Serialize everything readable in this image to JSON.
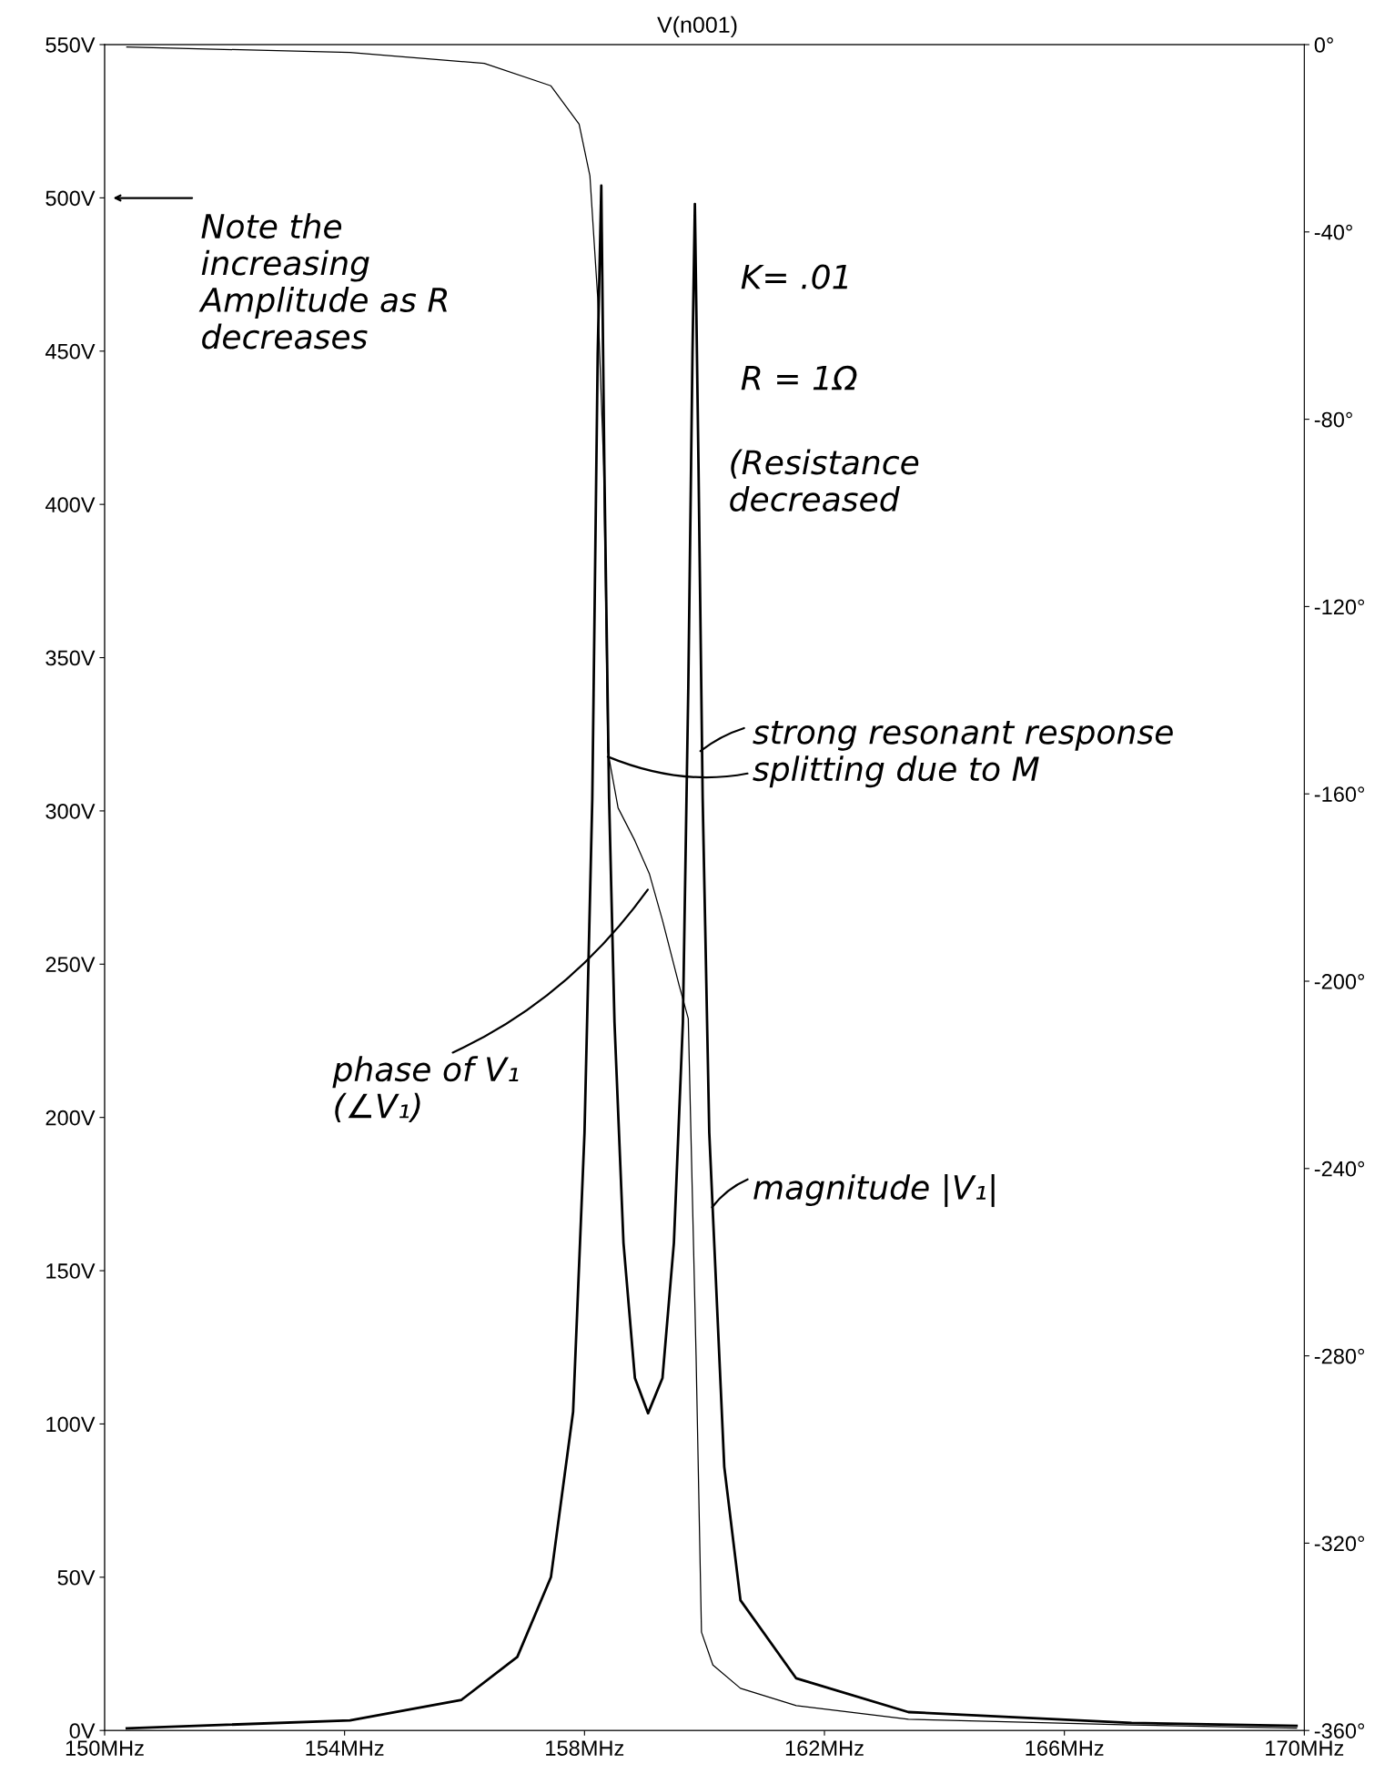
{
  "chart_data": {
    "type": "line",
    "title": "V(n001)",
    "xlim": [
      150,
      170
    ],
    "xticks": [
      {
        "value": 150,
        "label": "150MHz"
      },
      {
        "value": 154,
        "label": "154MHz"
      },
      {
        "value": 158,
        "label": "158MHz"
      },
      {
        "value": 162,
        "label": "162MHz"
      },
      {
        "value": 166,
        "label": "166MHz"
      },
      {
        "value": 170,
        "label": "170MHz"
      }
    ],
    "ylim": [
      0,
      550
    ],
    "yticks": [
      {
        "value": 0,
        "label": "0V"
      },
      {
        "value": 50,
        "label": "50V"
      },
      {
        "value": 100,
        "label": "100V"
      },
      {
        "value": 150,
        "label": "150V"
      },
      {
        "value": 200,
        "label": "200V"
      },
      {
        "value": 250,
        "label": "250V"
      },
      {
        "value": 300,
        "label": "300V"
      },
      {
        "value": 350,
        "label": "350V"
      },
      {
        "value": 400,
        "label": "400V"
      },
      {
        "value": 450,
        "label": "450V"
      },
      {
        "value": 500,
        "label": "500V"
      },
      {
        "value": 550,
        "label": "550V"
      }
    ],
    "y2lim": [
      -360,
      0
    ],
    "y2ticks": [
      {
        "value": -360,
        "label": "-360°"
      },
      {
        "value": -320,
        "label": "-320°"
      },
      {
        "value": -280,
        "label": "-280°"
      },
      {
        "value": -240,
        "label": "-240°"
      },
      {
        "value": -200,
        "label": "-200°"
      },
      {
        "value": -160,
        "label": "-160°"
      },
      {
        "value": -120,
        "label": "-120°"
      },
      {
        "value": -80,
        "label": "-80°"
      },
      {
        "value": -40,
        "label": "-40°"
      },
      {
        "value": 0,
        "label": "0°"
      }
    ],
    "grid": false,
    "marker": "none",
    "line_style": "solid",
    "series": [
      {
        "color": "#000000",
        "x": [
          150.37,
          154.09,
          155.95,
          156.88,
          157.44,
          157.81,
          158.0,
          158.13,
          158.22,
          158.28,
          158.33,
          158.41,
          158.5,
          158.65,
          158.84,
          159.06,
          159.3,
          159.49,
          159.64,
          159.73,
          159.8,
          159.84,
          159.9,
          159.97,
          160.08,
          160.33,
          160.6,
          161.53,
          163.4,
          167.12,
          169.87
        ],
        "values": [
          0.7,
          3.3,
          10,
          24,
          50,
          104,
          195,
          304,
          449,
          504,
          413,
          304,
          231,
          159,
          115,
          103.5,
          115,
          159,
          231,
          340,
          449,
          498,
          413,
          304,
          195,
          86,
          42.5,
          17,
          6,
          2.5,
          1.5
        ]
      },
      {
        "color": "#000000",
        "axis": "y2",
        "x": [
          150.37,
          154.09,
          156.33,
          157.44,
          157.91,
          158.09,
          158.22,
          158.32,
          158.39,
          158.56,
          158.84,
          159.08,
          159.3,
          159.58,
          159.73,
          159.86,
          159.95,
          160.14,
          160.6,
          161.53,
          163.4,
          167.12,
          169.87
        ],
        "values": [
          -0.5,
          -1.7,
          -4,
          -8.8,
          -17,
          -28,
          -54,
          -90,
          -151,
          -163,
          -170,
          -177,
          -187,
          -201,
          -208,
          -280,
          -339,
          -346,
          -351,
          -354.7,
          -357.6,
          -358.8,
          -359.5
        ]
      }
    ],
    "annotations": [
      "Note the increasing Amplitude as R decreases",
      "K= .01",
      "R = 1Ω",
      "(Resistance decreased",
      {
        "text": "strong resonant response splitting due to M",
        "x": 158.35,
        "y": 318
      },
      {
        "text": "phase of V₁ (∠V₁)",
        "x": 159.08,
        "y": 275
      },
      {
        "text": "magnitude |V₁|",
        "x": 160.1,
        "y": 170
      }
    ]
  }
}
